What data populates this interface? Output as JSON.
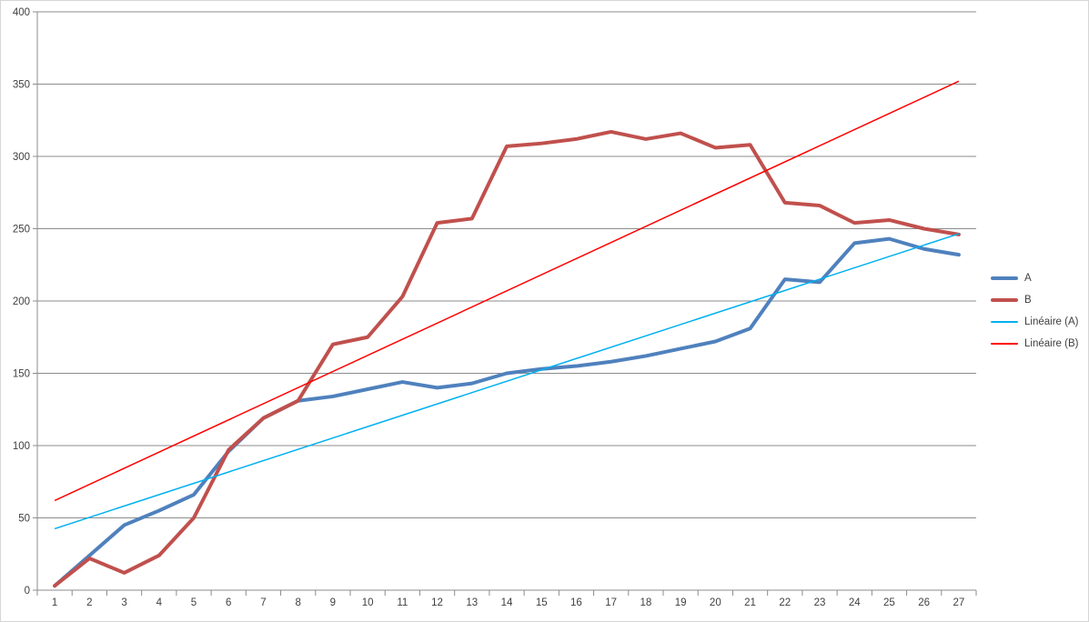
{
  "chart_data": {
    "type": "line",
    "title": "",
    "xlabel": "",
    "ylabel": "",
    "x": [
      1,
      2,
      3,
      4,
      5,
      6,
      7,
      8,
      9,
      10,
      11,
      12,
      13,
      14,
      15,
      16,
      17,
      18,
      19,
      20,
      21,
      22,
      23,
      24,
      25,
      26,
      27
    ],
    "series": [
      {
        "name": "A",
        "color": "#4F81BD",
        "width": 4,
        "values": [
          3,
          24,
          45,
          55,
          66,
          96,
          119,
          131,
          134,
          139,
          144,
          140,
          143,
          150,
          153,
          155,
          158,
          162,
          167,
          172,
          181,
          215,
          213,
          240,
          243,
          236,
          232
        ]
      },
      {
        "name": "B",
        "color": "#C0504D",
        "width": 4,
        "values": [
          3,
          22,
          12,
          24,
          50,
          97,
          119,
          131,
          170,
          175,
          203,
          254,
          257,
          307,
          309,
          312,
          317,
          312,
          316,
          306,
          308,
          268,
          266,
          254,
          256,
          250,
          246
        ]
      }
    ],
    "trendlines": [
      {
        "name": "Linéaire (A)",
        "color": "#00B0F0",
        "width": 1.5,
        "start": {
          "x": 1,
          "y": 42.5
        },
        "end": {
          "x": 27,
          "y": 246.5
        }
      },
      {
        "name": "Linéaire (B)",
        "color": "#FF0000",
        "width": 1.5,
        "start": {
          "x": 1,
          "y": 62
        },
        "end": {
          "x": 27,
          "y": 352
        }
      }
    ],
    "ylim": [
      0,
      400
    ],
    "ytick_step": 50,
    "y_ticks": [
      "0",
      "50",
      "100",
      "150",
      "200",
      "250",
      "300",
      "350",
      "400"
    ],
    "x_ticks": [
      "1",
      "2",
      "3",
      "4",
      "5",
      "6",
      "7",
      "8",
      "9",
      "10",
      "11",
      "12",
      "13",
      "14",
      "15",
      "16",
      "17",
      "18",
      "19",
      "20",
      "21",
      "22",
      "23",
      "24",
      "25",
      "26",
      "27"
    ],
    "grid": true,
    "legend": {
      "position": "right",
      "items": [
        {
          "label": "A"
        },
        {
          "label": "B"
        },
        {
          "label": "Linéaire (A)"
        },
        {
          "label": "Linéaire (B)"
        }
      ]
    },
    "colors": {
      "grid": "#8C8C8C",
      "axis": "#8C8C8C",
      "tick": "#8C8C8C",
      "label": "#3F3F3F",
      "background": "#FFFFFF",
      "frame_border": "#D6D6D6"
    }
  }
}
